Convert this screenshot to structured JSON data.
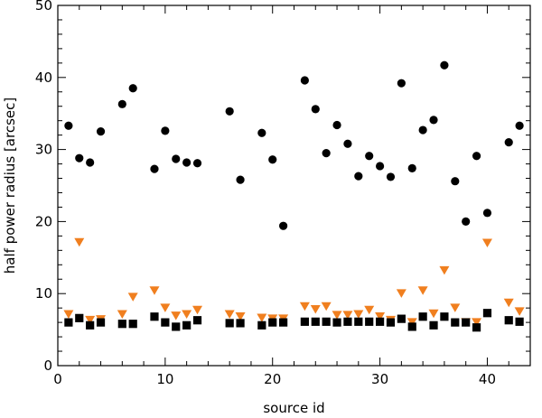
{
  "chart_data": {
    "type": "scatter",
    "xlabel": "source id",
    "ylabel": "half power radius [arcsec]",
    "xlim": [
      0,
      44
    ],
    "ylim": [
      0,
      50
    ],
    "x_ticks": [
      0,
      10,
      20,
      30,
      40
    ],
    "y_ticks": [
      0,
      10,
      20,
      30,
      40,
      50
    ],
    "grid": false,
    "series": [
      {
        "marker": "circle",
        "color": "#000000",
        "points": [
          [
            1,
            33.3
          ],
          [
            2,
            28.8
          ],
          [
            3,
            28.2
          ],
          [
            4,
            32.5
          ],
          [
            6,
            36.3
          ],
          [
            7,
            38.5
          ],
          [
            9,
            27.3
          ],
          [
            10,
            32.6
          ],
          [
            11,
            28.7
          ],
          [
            12,
            28.2
          ],
          [
            13,
            28.1
          ],
          [
            16,
            35.3
          ],
          [
            17,
            25.8
          ],
          [
            19,
            32.3
          ],
          [
            20,
            28.6
          ],
          [
            21,
            19.4
          ],
          [
            23,
            39.6
          ],
          [
            24,
            35.6
          ],
          [
            25,
            29.5
          ],
          [
            26,
            33.4
          ],
          [
            27,
            30.8
          ],
          [
            28,
            26.3
          ],
          [
            29,
            29.1
          ],
          [
            30,
            27.7
          ],
          [
            31,
            26.2
          ],
          [
            32,
            39.2
          ],
          [
            33,
            27.4
          ],
          [
            34,
            32.7
          ],
          [
            35,
            34.1
          ],
          [
            36,
            41.7
          ],
          [
            37,
            25.6
          ],
          [
            38,
            20.0
          ],
          [
            39,
            29.1
          ],
          [
            40,
            21.2
          ],
          [
            42,
            31.0
          ],
          [
            43,
            33.3
          ]
        ]
      },
      {
        "marker": "triangle-down",
        "color": "#f07f1f",
        "points": [
          [
            1,
            7.2
          ],
          [
            2,
            17.2
          ],
          [
            3,
            6.4
          ],
          [
            4,
            6.5
          ],
          [
            6,
            7.2
          ],
          [
            7,
            9.6
          ],
          [
            9,
            10.5
          ],
          [
            10,
            8.1
          ],
          [
            11,
            7.0
          ],
          [
            12,
            7.2
          ],
          [
            13,
            7.8
          ],
          [
            16,
            7.2
          ],
          [
            17,
            6.9
          ],
          [
            19,
            6.7
          ],
          [
            20,
            6.6
          ],
          [
            21,
            6.6
          ],
          [
            23,
            8.3
          ],
          [
            24,
            7.9
          ],
          [
            25,
            8.3
          ],
          [
            26,
            7.1
          ],
          [
            27,
            7.1
          ],
          [
            28,
            7.2
          ],
          [
            29,
            7.8
          ],
          [
            30,
            6.9
          ],
          [
            31,
            6.4
          ],
          [
            32,
            10.1
          ],
          [
            33,
            6.1
          ],
          [
            34,
            10.5
          ],
          [
            35,
            7.3
          ],
          [
            36,
            13.3
          ],
          [
            37,
            8.1
          ],
          [
            38,
            6.1
          ],
          [
            39,
            6.1
          ],
          [
            40,
            17.1
          ],
          [
            42,
            8.8
          ],
          [
            43,
            7.6
          ]
        ]
      },
      {
        "marker": "square",
        "color": "#000000",
        "points": [
          [
            1,
            6.0
          ],
          [
            2,
            6.6
          ],
          [
            3,
            5.6
          ],
          [
            4,
            6.0
          ],
          [
            6,
            5.8
          ],
          [
            7,
            5.8
          ],
          [
            9,
            6.8
          ],
          [
            10,
            6.0
          ],
          [
            11,
            5.4
          ],
          [
            12,
            5.6
          ],
          [
            13,
            6.3
          ],
          [
            16,
            5.9
          ],
          [
            17,
            5.9
          ],
          [
            19,
            5.6
          ],
          [
            20,
            6.0
          ],
          [
            21,
            6.0
          ],
          [
            23,
            6.1
          ],
          [
            24,
            6.1
          ],
          [
            25,
            6.1
          ],
          [
            26,
            6.0
          ],
          [
            27,
            6.1
          ],
          [
            28,
            6.1
          ],
          [
            29,
            6.1
          ],
          [
            30,
            6.1
          ],
          [
            31,
            6.0
          ],
          [
            32,
            6.5
          ],
          [
            33,
            5.4
          ],
          [
            34,
            6.8
          ],
          [
            35,
            5.6
          ],
          [
            36,
            6.8
          ],
          [
            37,
            6.0
          ],
          [
            38,
            6.0
          ],
          [
            39,
            5.3
          ],
          [
            40,
            7.3
          ],
          [
            42,
            6.3
          ],
          [
            43,
            6.1
          ]
        ]
      }
    ]
  }
}
